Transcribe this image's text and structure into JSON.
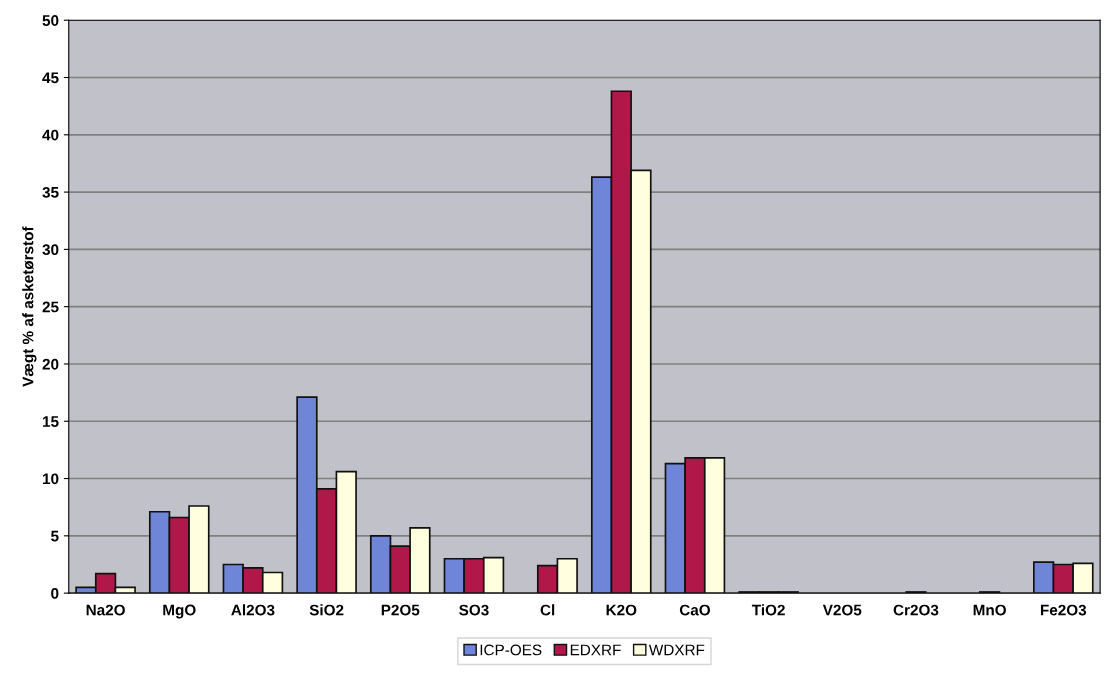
{
  "chart_data": {
    "type": "bar",
    "ylabel": "Vægt % af asketørstof",
    "categories": [
      "Na2O",
      "MgO",
      "Al2O3",
      "SiO2",
      "P2O5",
      "SO3",
      "Cl",
      "K2O",
      "CaO",
      "TiO2",
      "V2O5",
      "Cr2O3",
      "MnO",
      "Fe2O3"
    ],
    "series": [
      {
        "name": "ICP-OES",
        "color": "#6f86d8",
        "values": [
          0.5,
          7.1,
          2.5,
          17.1,
          5.0,
          3.0,
          null,
          36.3,
          11.3,
          0.1,
          null,
          null,
          null,
          2.7
        ]
      },
      {
        "name": "EDXRF",
        "color": "#b0184a",
        "values": [
          1.7,
          6.6,
          2.2,
          9.1,
          4.1,
          3.0,
          2.4,
          43.8,
          11.8,
          0.1,
          null,
          0.1,
          0.1,
          2.5
        ]
      },
      {
        "name": "WDXRF",
        "color": "#ffffe0",
        "values": [
          0.5,
          7.6,
          1.8,
          10.6,
          5.7,
          3.1,
          3.0,
          36.9,
          11.8,
          0.1,
          null,
          null,
          null,
          2.6
        ]
      }
    ],
    "ylim": [
      0,
      50
    ],
    "yticks": [
      0,
      5,
      10,
      15,
      20,
      25,
      30,
      35,
      40,
      45,
      50
    ],
    "grid": "y",
    "legend": "bottom"
  }
}
